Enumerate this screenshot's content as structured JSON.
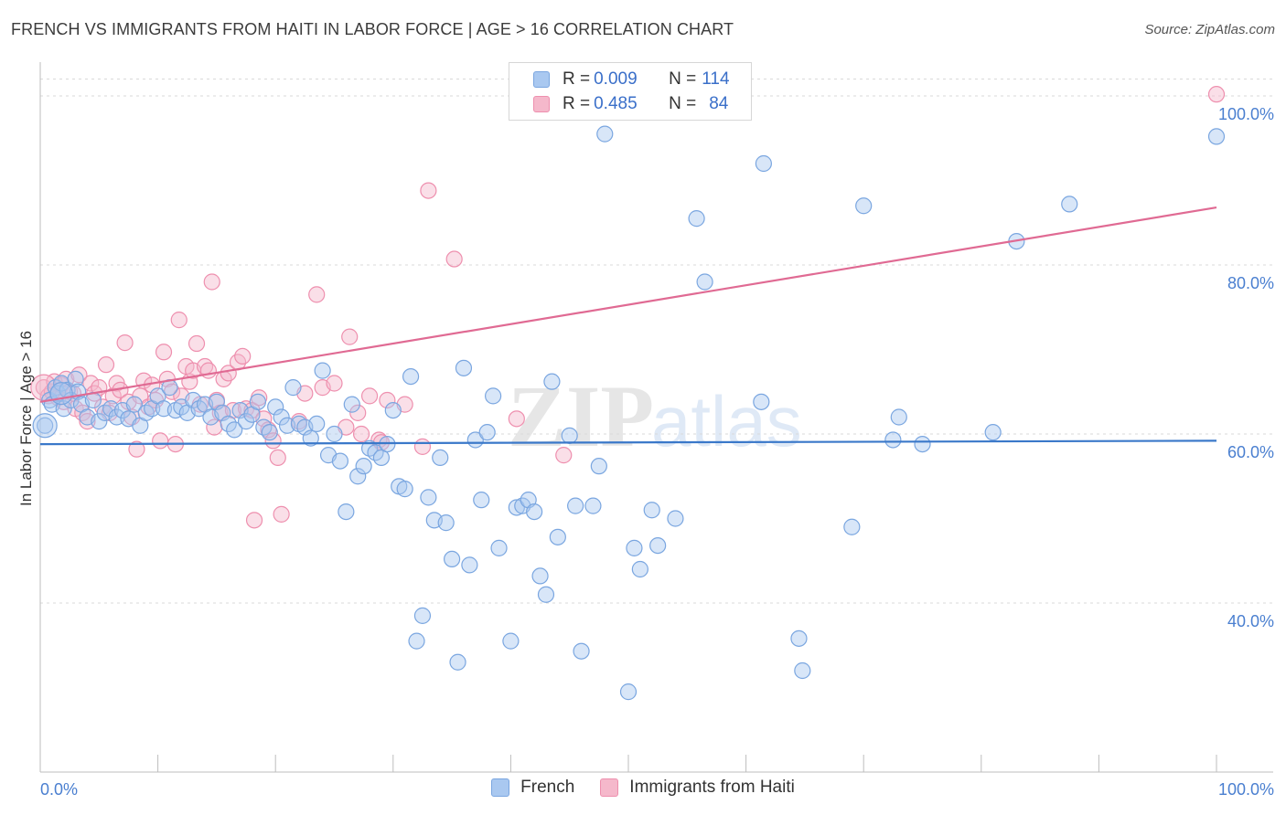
{
  "title": "FRENCH VS IMMIGRANTS FROM HAITI IN LABOR FORCE | AGE > 16 CORRELATION CHART",
  "source": "Source: ZipAtlas.com",
  "watermark": {
    "zip": "ZIP",
    "atlas": "atlas"
  },
  "colors": {
    "french_fill": "#a9c8f0",
    "french_stroke": "#7aa6e0",
    "french_line": "#3a78c9",
    "haiti_fill": "#f5b8cb",
    "haiti_stroke": "#ee8fae",
    "haiti_line": "#e06a93",
    "tick_text": "#4a7fd0",
    "grid": "#d9d9d9"
  },
  "legend": {
    "rows": [
      {
        "r_label": "R = ",
        "r_value": "0.009",
        "n_label": "N = ",
        "n_value": "114"
      },
      {
        "r_label": "R = ",
        "r_value": "0.485",
        "n_label": "N = ",
        "n_value": "84"
      }
    ]
  },
  "chart_data": {
    "type": "scatter",
    "title": "FRENCH VS IMMIGRANTS FROM HAITI IN LABOR FORCE | AGE > 16 CORRELATION CHART",
    "xlabel": "",
    "ylabel": "In Labor Force | Age > 16",
    "xlim": [
      0,
      100
    ],
    "ylim": [
      20,
      104
    ],
    "x_tick_labels": [
      "0.0%",
      "100.0%"
    ],
    "y_ticks": [
      40,
      60,
      80,
      100
    ],
    "y_tick_labels": [
      "40.0%",
      "60.0%",
      "80.0%",
      "100.0%"
    ],
    "grid": true,
    "legend_position": "top-center",
    "series": [
      {
        "name": "French",
        "trend": {
          "x": [
            0,
            100
          ],
          "y": [
            58.8,
            59.2
          ]
        },
        "points": [
          [
            0.4,
            61
          ],
          [
            0.8,
            64
          ],
          [
            1,
            63.5
          ],
          [
            1.3,
            65.5
          ],
          [
            1.5,
            64.8
          ],
          [
            1.8,
            66
          ],
          [
            2,
            63
          ],
          [
            2.3,
            65.2
          ],
          [
            2.6,
            64
          ],
          [
            3,
            66.5
          ],
          [
            3.2,
            65
          ],
          [
            3.5,
            63.5
          ],
          [
            4,
            62
          ],
          [
            4.5,
            64
          ],
          [
            5,
            61.5
          ],
          [
            5.5,
            62.5
          ],
          [
            6,
            63
          ],
          [
            6.5,
            62
          ],
          [
            7,
            62.8
          ],
          [
            7.5,
            61.8
          ],
          [
            8,
            63.5
          ],
          [
            8.5,
            61
          ],
          [
            9,
            62.5
          ],
          [
            9.5,
            63
          ],
          [
            10,
            64.5
          ],
          [
            10.5,
            63
          ],
          [
            11,
            65.5
          ],
          [
            11.5,
            62.8
          ],
          [
            12,
            63.2
          ],
          [
            12.5,
            62.5
          ],
          [
            13,
            64
          ],
          [
            13.5,
            63
          ],
          [
            14,
            63.5
          ],
          [
            14.5,
            62
          ],
          [
            15,
            63.8
          ],
          [
            15.5,
            62.5
          ],
          [
            16,
            61.2
          ],
          [
            16.5,
            60.5
          ],
          [
            17,
            62.8
          ],
          [
            17.5,
            61.5
          ],
          [
            18,
            62.3
          ],
          [
            18.5,
            63.8
          ],
          [
            19,
            60.8
          ],
          [
            19.5,
            60.2
          ],
          [
            20,
            63.2
          ],
          [
            20.5,
            62
          ],
          [
            21,
            61
          ],
          [
            21.5,
            65.5
          ],
          [
            22,
            61.2
          ],
          [
            22.5,
            60.8
          ],
          [
            23,
            59.5
          ],
          [
            23.5,
            61.2
          ],
          [
            24,
            67.5
          ],
          [
            24.5,
            57.5
          ],
          [
            25,
            60
          ],
          [
            25.5,
            56.8
          ],
          [
            26,
            50.8
          ],
          [
            26.5,
            63.5
          ],
          [
            27,
            55
          ],
          [
            27.5,
            56.2
          ],
          [
            28,
            58.3
          ],
          [
            28.5,
            57.8
          ],
          [
            29,
            57.2
          ],
          [
            29.5,
            58.8
          ],
          [
            30,
            62.8
          ],
          [
            30.5,
            53.8
          ],
          [
            31,
            53.5
          ],
          [
            31.5,
            66.8
          ],
          [
            32,
            35.5
          ],
          [
            32.5,
            38.5
          ],
          [
            33,
            52.5
          ],
          [
            33.5,
            49.8
          ],
          [
            34,
            57.2
          ],
          [
            34.5,
            49.5
          ],
          [
            35,
            45.2
          ],
          [
            35.5,
            33
          ],
          [
            36,
            67.8
          ],
          [
            36.5,
            44.5
          ],
          [
            37,
            59.3
          ],
          [
            37.5,
            52.2
          ],
          [
            38,
            60.2
          ],
          [
            38.5,
            64.5
          ],
          [
            39,
            46.5
          ],
          [
            40,
            35.5
          ],
          [
            40.5,
            51.3
          ],
          [
            41,
            51.5
          ],
          [
            41.5,
            52.2
          ],
          [
            42,
            50.8
          ],
          [
            42.5,
            43.2
          ],
          [
            43,
            41
          ],
          [
            43.5,
            66.2
          ],
          [
            44,
            47.8
          ],
          [
            45,
            59.8
          ],
          [
            45.5,
            51.5
          ],
          [
            46,
            34.3
          ],
          [
            47,
            51.5
          ],
          [
            47.5,
            56.2
          ],
          [
            48,
            95.5
          ],
          [
            50,
            29.5
          ],
          [
            50.5,
            46.5
          ],
          [
            51,
            44
          ],
          [
            52,
            51
          ],
          [
            52.5,
            46.8
          ],
          [
            54,
            50
          ],
          [
            55.8,
            85.5
          ],
          [
            56.5,
            78
          ],
          [
            61.3,
            63.8
          ],
          [
            61.5,
            92
          ],
          [
            64.5,
            35.8
          ],
          [
            64.8,
            32
          ],
          [
            69,
            49
          ],
          [
            70,
            87
          ],
          [
            72.5,
            59.3
          ],
          [
            73,
            62
          ],
          [
            75,
            58.8
          ],
          [
            81,
            60.2
          ],
          [
            83,
            82.8
          ],
          [
            87.5,
            87.2
          ],
          [
            100,
            95.2
          ]
        ]
      },
      {
        "name": "Immigrants from Haiti",
        "trend": {
          "x": [
            0,
            100
          ],
          "y": [
            63.8,
            86.8
          ]
        },
        "points": [
          [
            0.3,
            65.5
          ],
          [
            0.7,
            64.5
          ],
          [
            1,
            65
          ],
          [
            1.2,
            66.2
          ],
          [
            1.5,
            64.3
          ],
          [
            1.8,
            65.8
          ],
          [
            2,
            63.8
          ],
          [
            2.2,
            66.5
          ],
          [
            2.5,
            65
          ],
          [
            2.8,
            64.8
          ],
          [
            3,
            63
          ],
          [
            3.3,
            67
          ],
          [
            3.6,
            62.5
          ],
          [
            4,
            61.5
          ],
          [
            4.3,
            66
          ],
          [
            4.6,
            64.8
          ],
          [
            5,
            65.5
          ],
          [
            5.3,
            63.2
          ],
          [
            5.6,
            68.2
          ],
          [
            5.9,
            62.5
          ],
          [
            6.2,
            64.5
          ],
          [
            6.5,
            66
          ],
          [
            6.8,
            65.2
          ],
          [
            7.2,
            70.8
          ],
          [
            7.5,
            63.8
          ],
          [
            7.8,
            62
          ],
          [
            8.2,
            58.2
          ],
          [
            8.5,
            64.5
          ],
          [
            8.8,
            66.3
          ],
          [
            9.2,
            63.2
          ],
          [
            9.5,
            65.8
          ],
          [
            9.8,
            64
          ],
          [
            10.2,
            59.2
          ],
          [
            10.5,
            69.7
          ],
          [
            10.8,
            66.5
          ],
          [
            11.2,
            65
          ],
          [
            11.5,
            58.8
          ],
          [
            11.8,
            73.5
          ],
          [
            12,
            64.5
          ],
          [
            12.4,
            68
          ],
          [
            12.7,
            66.2
          ],
          [
            13,
            67.5
          ],
          [
            13.3,
            70.7
          ],
          [
            13.6,
            63.5
          ],
          [
            14,
            68
          ],
          [
            14.3,
            67.5
          ],
          [
            14.6,
            78
          ],
          [
            14.8,
            60.8
          ],
          [
            15,
            64
          ],
          [
            15.3,
            62.5
          ],
          [
            15.6,
            66.5
          ],
          [
            16,
            67.2
          ],
          [
            16.4,
            62.8
          ],
          [
            16.8,
            68.5
          ],
          [
            17.2,
            69.2
          ],
          [
            17.5,
            63
          ],
          [
            18,
            62.8
          ],
          [
            18.2,
            49.8
          ],
          [
            18.6,
            64.3
          ],
          [
            19,
            61.8
          ],
          [
            19.4,
            60.5
          ],
          [
            19.8,
            59.2
          ],
          [
            20.2,
            57.2
          ],
          [
            20.5,
            50.5
          ],
          [
            22,
            61.5
          ],
          [
            22.5,
            64.8
          ],
          [
            23.5,
            76.5
          ],
          [
            24,
            65.5
          ],
          [
            25,
            66
          ],
          [
            26,
            60.8
          ],
          [
            26.3,
            71.5
          ],
          [
            27,
            62.5
          ],
          [
            27.3,
            60
          ],
          [
            28,
            64.5
          ],
          [
            28.8,
            59.3
          ],
          [
            29,
            59
          ],
          [
            29.5,
            64
          ],
          [
            31,
            63.5
          ],
          [
            32.5,
            58.5
          ],
          [
            33,
            88.8
          ],
          [
            35.2,
            80.7
          ],
          [
            40.5,
            61.8
          ],
          [
            44.5,
            57.5
          ],
          [
            100,
            100.2
          ]
        ]
      }
    ]
  },
  "bottom_legend": {
    "items": [
      "French",
      "Immigrants from Haiti"
    ]
  }
}
